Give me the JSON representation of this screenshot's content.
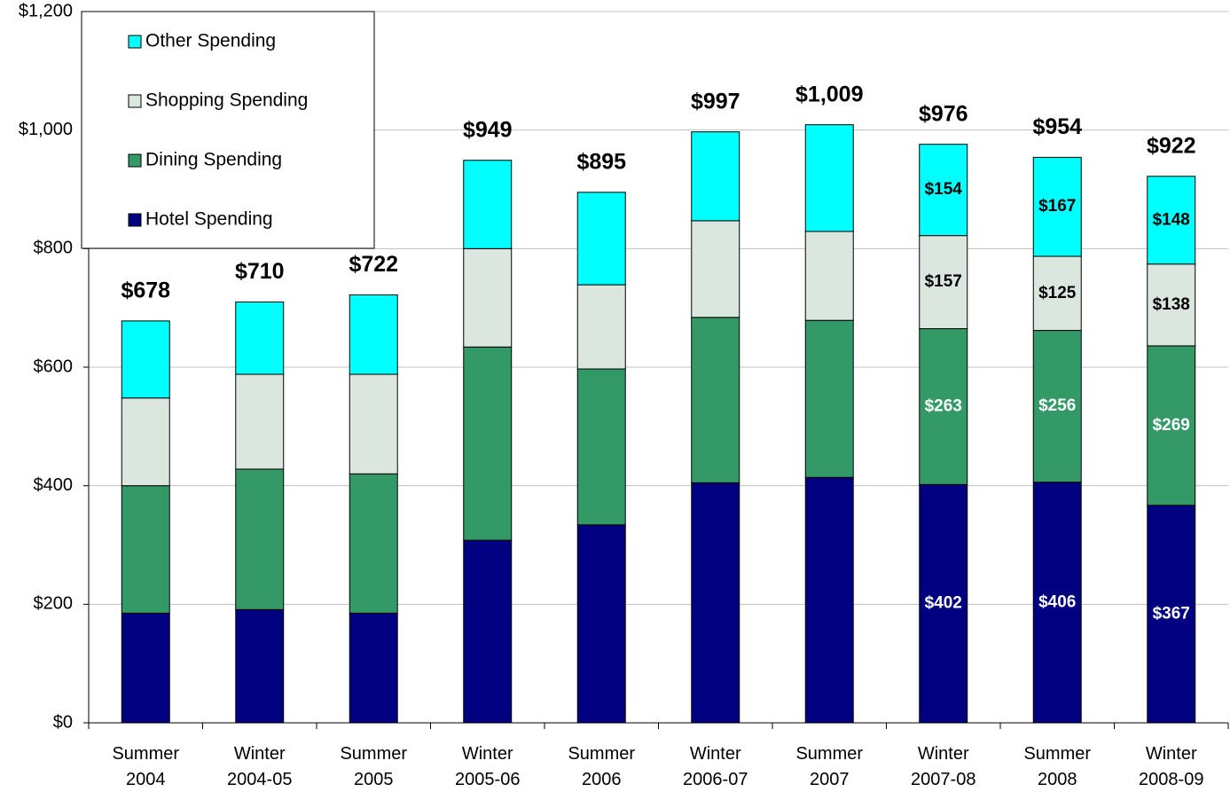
{
  "chart_data": {
    "type": "stacked_bar",
    "categories": [
      "Summer\n2004",
      "Winter\n2004-05",
      "Summer\n2005",
      "Winter\n2005-06",
      "Summer\n2006",
      "Winter\n2006-07",
      "Summer\n2007",
      "Winter\n2007-08",
      "Summer\n2008",
      "Winter\n2008-09"
    ],
    "series": [
      {
        "name": "Hotel Spending",
        "color": "#000080",
        "label_color": "#ffffff",
        "values": [
          185,
          191,
          185,
          308,
          334,
          405,
          414,
          402,
          406,
          367
        ],
        "value_labels": [
          null,
          null,
          null,
          null,
          null,
          null,
          null,
          "$402",
          "$406",
          "$367"
        ]
      },
      {
        "name": "Dining Spending",
        "color": "#339966",
        "label_color": "#ffffff",
        "values": [
          215,
          237,
          235,
          326,
          263,
          279,
          265,
          263,
          256,
          269
        ],
        "value_labels": [
          null,
          null,
          null,
          null,
          null,
          null,
          null,
          "$263",
          "$256",
          "$269"
        ]
      },
      {
        "name": "Shopping Spending",
        "color": "#dae6de",
        "label_color": "#000000",
        "values": [
          148,
          160,
          168,
          166,
          142,
          163,
          150,
          157,
          125,
          138
        ],
        "value_labels": [
          null,
          null,
          null,
          null,
          null,
          null,
          null,
          "$157",
          "$125",
          "$138"
        ]
      },
      {
        "name": "Other Spending",
        "color": "#00ffff",
        "label_color": "#000000",
        "values": [
          130,
          122,
          134,
          149,
          156,
          150,
          180,
          154,
          167,
          148
        ],
        "value_labels": [
          null,
          null,
          null,
          null,
          null,
          null,
          null,
          "$154",
          "$167",
          "$148"
        ]
      }
    ],
    "totals": [
      678,
      710,
      722,
      949,
      895,
      997,
      1009,
      976,
      954,
      922
    ],
    "total_labels": [
      "$678",
      "$710",
      "$722",
      "$949",
      "$895",
      "$997",
      "$1,009",
      "$976",
      "$954",
      "$922"
    ],
    "ylim": [
      0,
      1200
    ],
    "yticks": [
      {
        "value": 0,
        "label": "$0"
      },
      {
        "value": 200,
        "label": "$200"
      },
      {
        "value": 400,
        "label": "$400"
      },
      {
        "value": 600,
        "label": "$600"
      },
      {
        "value": 800,
        "label": "$800"
      },
      {
        "value": 1000,
        "label": "$1,000"
      },
      {
        "value": 1200,
        "label": "$1,200"
      }
    ],
    "grid": true,
    "legend": "upper left"
  }
}
